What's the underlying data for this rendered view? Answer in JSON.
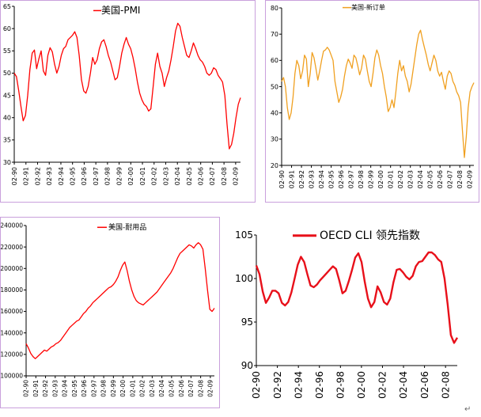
{
  "colors": {
    "red": "#ff0000",
    "orange": "#f0a020",
    "red2": "#e8101a",
    "border": "#c9a0dc"
  },
  "corner_mark": "↵",
  "chart_data": [
    {
      "id": "pmi",
      "type": "line",
      "series": [
        {
          "name": "美国-PMI",
          "color": "#ff0000",
          "values": [
            50.0,
            49.2,
            46.0,
            42.5,
            39.3,
            40.5,
            45.0,
            50.8,
            54.5,
            55.2,
            51.0,
            53.2,
            55.0,
            50.5,
            49.5,
            54.0,
            55.7,
            54.8,
            52.0,
            50.0,
            51.5,
            54.0,
            55.5,
            56.0,
            57.5,
            58.0,
            58.5,
            59.3,
            58.0,
            54.0,
            48.5,
            46.0,
            45.5,
            47.0,
            50.0,
            53.5,
            52.0,
            53.0,
            55.5,
            57.0,
            57.5,
            56.0,
            54.0,
            52.5,
            50.5,
            48.5,
            49.0,
            51.5,
            54.5,
            56.5,
            58.0,
            56.5,
            55.5,
            53.5,
            51.0,
            48.0,
            45.5,
            44.0,
            43.0,
            42.5,
            41.5,
            42.0,
            47.0,
            52.0,
            54.5,
            51.5,
            50.0,
            47.0,
            49.0,
            50.5,
            53.0,
            56.0,
            59.5,
            61.2,
            60.5,
            58.0,
            56.0,
            54.0,
            53.5,
            55.0,
            56.8,
            55.5,
            54.0,
            53.0,
            52.5,
            51.5,
            50.0,
            49.5,
            50.0,
            51.2,
            50.8,
            49.5,
            48.8,
            48.0,
            45.0,
            38.5,
            33.0,
            34.0,
            36.5,
            40.0,
            43.0,
            44.5
          ]
        }
      ],
      "x_tick_labels": [
        "02-90",
        "02-91",
        "02-92",
        "02-93",
        "02-94",
        "02-95",
        "02-96",
        "02-97",
        "02-98",
        "02-99",
        "02-00",
        "02-01",
        "02-02",
        "02-03",
        "02-04",
        "02-05",
        "02-06",
        "02-07",
        "02-08",
        "02-09"
      ],
      "x_range": [
        1990.08,
        2009.5
      ],
      "ylim": [
        30,
        65
      ],
      "y_ticks": [
        30,
        35,
        40,
        45,
        50,
        55,
        60,
        65
      ]
    },
    {
      "id": "employment",
      "type": "line",
      "series": [
        {
          "name": "美国-新订单",
          "color": "#f0a020",
          "values": [
            52.0,
            53.5,
            50.0,
            42.0,
            37.5,
            40.0,
            46.0,
            55.0,
            60.0,
            58.0,
            53.0,
            56.0,
            62.0,
            60.5,
            50.0,
            55.0,
            63.0,
            61.0,
            57.0,
            52.5,
            56.0,
            60.0,
            63.5,
            64.0,
            65.0,
            64.0,
            62.0,
            60.0,
            52.0,
            48.0,
            44.0,
            46.0,
            49.0,
            54.0,
            58.0,
            60.5,
            59.0,
            57.0,
            62.0,
            61.0,
            58.0,
            54.5,
            57.0,
            62.0,
            60.5,
            56.0,
            52.0,
            50.0,
            55.0,
            61.0,
            64.0,
            62.0,
            58.0,
            55.0,
            50.0,
            46.0,
            40.5,
            42.0,
            45.0,
            42.0,
            48.0,
            55.0,
            60.0,
            56.0,
            58.0,
            54.0,
            52.0,
            48.0,
            51.0,
            56.0,
            61.0,
            66.0,
            70.0,
            71.5,
            68.0,
            65.0,
            62.0,
            58.5,
            56.0,
            59.0,
            62.0,
            60.0,
            56.0,
            54.0,
            55.5,
            52.0,
            49.0,
            54.0,
            56.0,
            55.0,
            52.0,
            50.5,
            48.0,
            46.5,
            44.0,
            33.0,
            23.0,
            31.0,
            42.0,
            48.0,
            50.0,
            51.5
          ]
        }
      ],
      "x_tick_labels": [
        "02-90",
        "02-91",
        "02-92",
        "02-93",
        "02-94",
        "02-95",
        "02-96",
        "02-97",
        "02-98",
        "02-99",
        "02-00",
        "02-01",
        "02-02",
        "02-03",
        "02-04",
        "02-05",
        "02-06",
        "02-07",
        "02-08",
        "02-09"
      ],
      "x_range": [
        1990.08,
        2009.5
      ],
      "ylim": [
        20,
        80
      ],
      "y_ticks": [
        20,
        30,
        40,
        50,
        60,
        70,
        80
      ]
    },
    {
      "id": "durable",
      "type": "line",
      "series": [
        {
          "name": "美国-耐用品",
          "color": "#ff0000",
          "values": [
            130000,
            126000,
            121000,
            118000,
            116000,
            118000,
            120000,
            122000,
            124000,
            123000,
            125000,
            127000,
            128000,
            130000,
            131000,
            133000,
            136000,
            139000,
            142000,
            145000,
            147000,
            149000,
            151000,
            152000,
            155000,
            158000,
            160000,
            163000,
            165000,
            168000,
            170000,
            172000,
            174000,
            176000,
            178000,
            180000,
            182000,
            183000,
            185000,
            188000,
            192000,
            198000,
            203000,
            206000,
            198000,
            188000,
            180000,
            174000,
            170000,
            168000,
            167000,
            166000,
            168000,
            170000,
            172000,
            174000,
            176000,
            178000,
            181000,
            184000,
            187000,
            190000,
            193000,
            196000,
            200000,
            205000,
            210000,
            214000,
            216000,
            218000,
            220000,
            222000,
            221000,
            219000,
            222000,
            224000,
            222000,
            218000,
            200000,
            180000,
            162000,
            160000,
            163000
          ]
        }
      ],
      "x_tick_labels": [
        "02-90",
        "02-91",
        "02-92",
        "02-93",
        "02-94",
        "02-95",
        "02-96",
        "02-97",
        "02-98",
        "02-99",
        "02-00",
        "02-01",
        "02-02",
        "02-03",
        "02-04",
        "02-05",
        "02-06",
        "02-07",
        "02-08",
        "02-09"
      ],
      "x_range": [
        1990.08,
        2009.5
      ],
      "ylim": [
        100000,
        240000
      ],
      "y_ticks": [
        100000,
        120000,
        140000,
        160000,
        180000,
        200000,
        220000,
        240000
      ]
    },
    {
      "id": "oecd",
      "type": "line",
      "series": [
        {
          "name": "OECD CLI 领先指数",
          "color": "#e8101a",
          "values": [
            101.5,
            100.5,
            98.5,
            97.2,
            97.8,
            98.6,
            98.6,
            98.3,
            97.2,
            96.9,
            97.3,
            98.4,
            100.0,
            101.6,
            102.5,
            101.9,
            100.5,
            99.2,
            99.0,
            99.3,
            99.8,
            100.2,
            100.6,
            101.0,
            101.4,
            101.1,
            99.8,
            98.3,
            98.6,
            99.7,
            101.0,
            102.4,
            102.9,
            101.9,
            99.6,
            97.7,
            96.7,
            97.3,
            99.1,
            98.4,
            97.3,
            97.0,
            97.7,
            99.6,
            101.0,
            101.1,
            100.7,
            100.2,
            99.9,
            100.3,
            101.4,
            101.9,
            102.0,
            102.5,
            103.0,
            103.0,
            102.7,
            102.2,
            101.9,
            100.0,
            97.0,
            93.5,
            92.6,
            93.2
          ]
        }
      ],
      "x_tick_labels": [
        "02-90",
        "02-92",
        "02-94",
        "02-96",
        "02-98",
        "02-00",
        "02-02",
        "02-04",
        "02-06",
        "02-08"
      ],
      "x_range": [
        1990.08,
        2009.2
      ],
      "ylim": [
        90,
        105
      ],
      "y_ticks": [
        90,
        95,
        100,
        105
      ]
    }
  ]
}
